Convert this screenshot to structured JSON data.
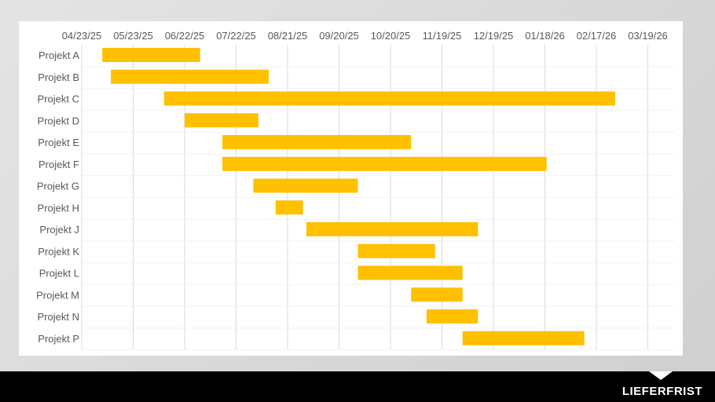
{
  "chart_data": {
    "type": "gantt",
    "axis_ticks": [
      "04/23/25",
      "05/23/25",
      "06/22/25",
      "07/22/25",
      "08/21/25",
      "09/20/25",
      "10/20/25",
      "11/19/25",
      "12/19/25",
      "01/18/26",
      "02/17/26",
      "03/19/26"
    ],
    "xlim": [
      "2025-04-23",
      "2026-04-18"
    ],
    "grid": true,
    "bar_color": "#FFC000",
    "tasks": [
      {
        "name": "Projekt A",
        "start": "2025-05-05",
        "end": "2025-07-01"
      },
      {
        "name": "Projekt B",
        "start": "2025-05-10",
        "end": "2025-08-10"
      },
      {
        "name": "Projekt C",
        "start": "2025-06-10",
        "end": "2026-02-28"
      },
      {
        "name": "Projekt D",
        "start": "2025-06-22",
        "end": "2025-08-04"
      },
      {
        "name": "Projekt E",
        "start": "2025-07-14",
        "end": "2025-11-01"
      },
      {
        "name": "Projekt F",
        "start": "2025-07-14",
        "end": "2026-01-19"
      },
      {
        "name": "Projekt G",
        "start": "2025-08-01",
        "end": "2025-10-01"
      },
      {
        "name": "Projekt H",
        "start": "2025-08-14",
        "end": "2025-08-30"
      },
      {
        "name": "Projekt J",
        "start": "2025-09-01",
        "end": "2025-12-10"
      },
      {
        "name": "Projekt K",
        "start": "2025-10-01",
        "end": "2025-11-15"
      },
      {
        "name": "Projekt L",
        "start": "2025-10-01",
        "end": "2025-12-01"
      },
      {
        "name": "Projekt M",
        "start": "2025-11-01",
        "end": "2025-12-01"
      },
      {
        "name": "Projekt N",
        "start": "2025-11-10",
        "end": "2025-12-10"
      },
      {
        "name": "Projekt P",
        "start": "2025-12-01",
        "end": "2026-02-10"
      }
    ]
  },
  "footer": {
    "label": "LIEFERFRIST"
  }
}
